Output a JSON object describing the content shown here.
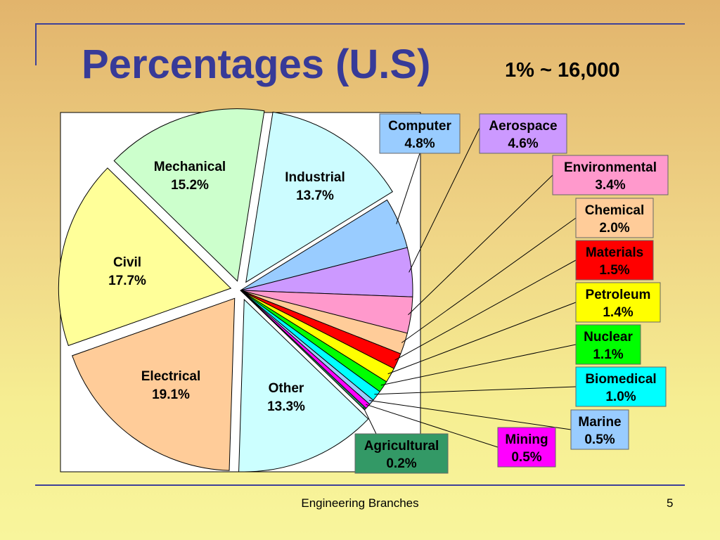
{
  "slide": {
    "title": "Percentages (U.S)",
    "subtitle": "1% ~ 16,000",
    "footer": "Engineering Branches",
    "page_number": "5"
  },
  "chart_data": {
    "type": "pie",
    "legend": "none",
    "slices": [
      {
        "label": "Industrial",
        "value": 13.7,
        "percent_label": "13.7%",
        "color": "#ccfcff",
        "label_position": "inside"
      },
      {
        "label": "Computer",
        "value": 4.8,
        "percent_label": "4.8%",
        "color": "#99ccff",
        "label_position": "outside"
      },
      {
        "label": "Aerospace",
        "value": 4.6,
        "percent_label": "4.6%",
        "color": "#cc99ff",
        "label_position": "outside"
      },
      {
        "label": "Environmental",
        "value": 3.4,
        "percent_label": "3.4%",
        "color": "#ff99cc",
        "label_position": "outside"
      },
      {
        "label": "Chemical",
        "value": 2.0,
        "percent_label": "2.0%",
        "color": "#ffcc99",
        "label_position": "outside"
      },
      {
        "label": "Materials",
        "value": 1.5,
        "percent_label": "1.5%",
        "color": "#ff0000",
        "label_position": "outside"
      },
      {
        "label": "Petroleum",
        "value": 1.4,
        "percent_label": "1.4%",
        "color": "#ffff00",
        "label_position": "outside"
      },
      {
        "label": "Nuclear",
        "value": 1.1,
        "percent_label": "1.1%",
        "color": "#00ff00",
        "label_position": "outside"
      },
      {
        "label": "Biomedical",
        "value": 1.0,
        "percent_label": "1.0%",
        "color": "#00ffff",
        "label_position": "outside"
      },
      {
        "label": "Marine",
        "value": 0.5,
        "percent_label": "0.5%",
        "color": "#99ccff",
        "label_position": "outside"
      },
      {
        "label": "Mining",
        "value": 0.5,
        "percent_label": "0.5%",
        "color": "#ff00ff",
        "label_position": "outside"
      },
      {
        "label": "Agricultural",
        "value": 0.2,
        "percent_label": "0.2%",
        "color": "#339966",
        "label_position": "outside"
      },
      {
        "label": "Other",
        "value": 13.3,
        "percent_label": "13.3%",
        "color": "#ccffff",
        "label_position": "inside"
      },
      {
        "label": "Electrical",
        "value": 19.1,
        "percent_label": "19.1%",
        "color": "#ffcc99",
        "label_position": "inside"
      },
      {
        "label": "Civil",
        "value": 17.7,
        "percent_label": "17.7%",
        "color": "#ffff99",
        "label_position": "inside"
      },
      {
        "label": "Mechanical",
        "value": 15.2,
        "percent_label": "15.2%",
        "color": "#ccffcc",
        "label_position": "inside"
      }
    ]
  }
}
